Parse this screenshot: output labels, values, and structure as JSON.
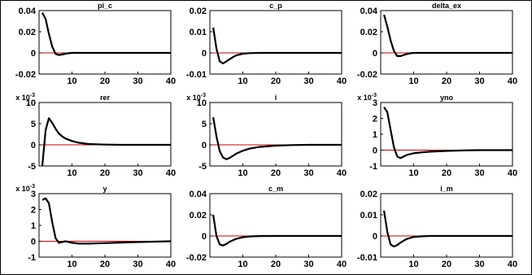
{
  "colors": {
    "response": "#000000",
    "zero_line": "#cc0000",
    "axes": "#000000"
  },
  "chart_data": [
    {
      "type": "line",
      "title": "pi_c",
      "xlim": [
        0,
        40
      ],
      "ylim": [
        -0.02,
        0.04
      ],
      "xticks": [
        10,
        20,
        30,
        40
      ],
      "xtick_labels": [
        "10",
        "20",
        "30",
        "40"
      ],
      "yticks": [
        -0.02,
        0,
        0.02,
        0.04
      ],
      "ytick_labels": [
        "-0.02",
        "0",
        "0.02",
        "0.04"
      ],
      "exponent_label": "",
      "x": [
        1,
        2,
        3,
        4,
        5,
        6,
        7,
        8,
        9,
        10,
        12,
        15,
        20,
        30,
        40
      ],
      "y": [
        0.038,
        0.032,
        0.018,
        0.006,
        -0.001,
        -0.002,
        -0.0015,
        -0.0008,
        -0.0003,
        0,
        0,
        0,
        0,
        0,
        0
      ]
    },
    {
      "type": "line",
      "title": "c_p",
      "xlim": [
        0,
        40
      ],
      "ylim": [
        -0.01,
        0.02
      ],
      "xticks": [
        10,
        20,
        30,
        40
      ],
      "xtick_labels": [
        "10",
        "20",
        "30",
        "40"
      ],
      "yticks": [
        -0.01,
        0,
        0.01,
        0.02
      ],
      "ytick_labels": [
        "-0.01",
        "0",
        "0.01",
        "0.02"
      ],
      "exponent_label": "",
      "x": [
        1,
        2,
        3,
        4,
        5,
        6,
        7,
        8,
        10,
        12,
        15,
        20,
        30,
        40
      ],
      "y": [
        0.012,
        0.002,
        -0.004,
        -0.005,
        -0.004,
        -0.003,
        -0.002,
        -0.0012,
        -0.0004,
        -0.0001,
        0,
        0,
        0,
        0
      ]
    },
    {
      "type": "line",
      "title": "delta_ex",
      "xlim": [
        0,
        40
      ],
      "ylim": [
        -0.02,
        0.04
      ],
      "xticks": [
        10,
        20,
        30,
        40
      ],
      "xtick_labels": [
        "10",
        "20",
        "30",
        "40"
      ],
      "yticks": [
        -0.02,
        0,
        0.02,
        0.04
      ],
      "ytick_labels": [
        "-0.02",
        "0",
        "0.02",
        "0.04"
      ],
      "exponent_label": "",
      "x": [
        1,
        2,
        3,
        4,
        5,
        6,
        7,
        8,
        9,
        10,
        12,
        15,
        20,
        30,
        40
      ],
      "y": [
        0.036,
        0.025,
        0.012,
        0.002,
        -0.003,
        -0.003,
        -0.002,
        -0.001,
        -0.0004,
        0,
        0,
        0,
        0,
        0,
        0
      ]
    },
    {
      "type": "line",
      "title": "rer",
      "xlim": [
        0,
        40
      ],
      "ylim": [
        -5,
        10
      ],
      "xticks": [
        10,
        20,
        30,
        40
      ],
      "xtick_labels": [
        "10",
        "20",
        "30",
        "40"
      ],
      "yticks": [
        -5,
        0,
        5,
        10
      ],
      "ytick_labels": [
        "-5",
        "0",
        "5",
        "10"
      ],
      "exponent_label": "x 10-3",
      "x": [
        1,
        2,
        3,
        4,
        5,
        6,
        7,
        8,
        10,
        12,
        15,
        20,
        25,
        30,
        40
      ],
      "y": [
        -5,
        3.5,
        6.3,
        5.2,
        3.8,
        2.7,
        2,
        1.5,
        0.9,
        0.5,
        0.2,
        0.05,
        0,
        0,
        0
      ]
    },
    {
      "type": "line",
      "title": "i",
      "xlim": [
        0,
        40
      ],
      "ylim": [
        -5,
        10
      ],
      "xticks": [
        10,
        20,
        30,
        40
      ],
      "xtick_labels": [
        "10",
        "20",
        "30",
        "40"
      ],
      "yticks": [
        -5,
        0,
        5,
        10
      ],
      "ytick_labels": [
        "-5",
        "0",
        "5",
        "10"
      ],
      "exponent_label": "x 10-3",
      "x": [
        1,
        2,
        3,
        4,
        5,
        6,
        7,
        8,
        10,
        12,
        15,
        20,
        25,
        30,
        40
      ],
      "y": [
        6.5,
        2,
        -1.5,
        -3,
        -3.4,
        -3.1,
        -2.6,
        -2.1,
        -1.4,
        -0.9,
        -0.5,
        -0.2,
        -0.05,
        0,
        0
      ]
    },
    {
      "type": "line",
      "title": "yno",
      "xlim": [
        0,
        40
      ],
      "ylim": [
        -1,
        3
      ],
      "xticks": [
        10,
        20,
        30,
        40
      ],
      "xtick_labels": [
        "10",
        "20",
        "30",
        "40"
      ],
      "yticks": [
        -1,
        0,
        1,
        2,
        3
      ],
      "ytick_labels": [
        "-1",
        "0",
        "1",
        "2",
        "3"
      ],
      "exponent_label": "x 10-3",
      "x": [
        1,
        2,
        3,
        4,
        5,
        6,
        7,
        8,
        10,
        12,
        15,
        20,
        25,
        30,
        40
      ],
      "y": [
        2.7,
        2.4,
        1.3,
        0.2,
        -0.4,
        -0.5,
        -0.4,
        -0.3,
        -0.2,
        -0.15,
        -0.1,
        -0.05,
        -0.02,
        0,
        0
      ]
    },
    {
      "type": "line",
      "title": "y",
      "xlim": [
        0,
        40
      ],
      "ylim": [
        -1,
        3
      ],
      "xticks": [
        10,
        20,
        30,
        40
      ],
      "xtick_labels": [
        "10",
        "20",
        "30",
        "40"
      ],
      "yticks": [
        -1,
        0,
        1,
        2,
        3
      ],
      "ytick_labels": [
        "-1",
        "0",
        "1",
        "2",
        "3"
      ],
      "exponent_label": "x 10-3",
      "x": [
        1,
        2,
        3,
        4,
        5,
        6,
        7,
        8,
        9,
        10,
        12,
        15,
        20,
        25,
        30,
        40
      ],
      "y": [
        2.6,
        2.7,
        2.4,
        1.2,
        0.2,
        -0.1,
        -0.05,
        0,
        -0.05,
        -0.1,
        -0.15,
        -0.15,
        -0.12,
        -0.08,
        -0.05,
        0
      ]
    },
    {
      "type": "line",
      "title": "c_m",
      "xlim": [
        0,
        40
      ],
      "ylim": [
        -0.02,
        0.04
      ],
      "xticks": [
        10,
        20,
        30,
        40
      ],
      "xtick_labels": [
        "10",
        "20",
        "30",
        "40"
      ],
      "yticks": [
        -0.02,
        0,
        0.02,
        0.04
      ],
      "ytick_labels": [
        "-0.02",
        "0",
        "0.02",
        "0.04"
      ],
      "exponent_label": "",
      "x": [
        1,
        2,
        3,
        4,
        5,
        6,
        7,
        8,
        10,
        12,
        15,
        20,
        30,
        40
      ],
      "y": [
        0.02,
        0,
        -0.008,
        -0.009,
        -0.0075,
        -0.0055,
        -0.004,
        -0.0028,
        -0.0012,
        -0.0005,
        -0.0001,
        0,
        0,
        0
      ]
    },
    {
      "type": "line",
      "title": "i_m",
      "xlim": [
        0,
        40
      ],
      "ylim": [
        -0.01,
        0.02
      ],
      "xticks": [
        10,
        20,
        30,
        40
      ],
      "xtick_labels": [
        "10",
        "20",
        "30",
        "40"
      ],
      "yticks": [
        -0.01,
        0,
        0.01,
        0.02
      ],
      "ytick_labels": [
        "-0.01",
        "0",
        "0.01",
        "0.02"
      ],
      "exponent_label": "",
      "x": [
        1,
        2,
        3,
        4,
        5,
        6,
        7,
        8,
        10,
        12,
        15,
        20,
        30,
        40
      ],
      "y": [
        0.012,
        0.002,
        -0.004,
        -0.005,
        -0.0043,
        -0.0032,
        -0.0022,
        -0.0014,
        -0.0005,
        -0.0002,
        0,
        0,
        0,
        0
      ]
    }
  ]
}
